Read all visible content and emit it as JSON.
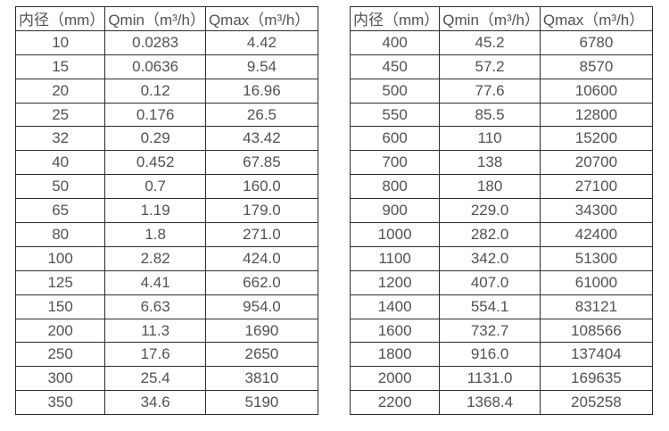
{
  "page": {
    "background": "#ffffff"
  },
  "style": {
    "border_color": "#2d2d2d",
    "text_color": "#515151"
  },
  "tables": [
    {
      "headers": [
        "内径（mm）",
        "Qmin（m³/h）",
        "Qmax（m³/h）"
      ],
      "rows": [
        [
          "10",
          "0.0283",
          "4.42"
        ],
        [
          "15",
          "0.0636",
          "9.54"
        ],
        [
          "20",
          "0.12",
          "16.96"
        ],
        [
          "25",
          "0.176",
          "26.5"
        ],
        [
          "32",
          "0.29",
          "43.42"
        ],
        [
          "40",
          "0.452",
          "67.85"
        ],
        [
          "50",
          "0.7",
          "160.0"
        ],
        [
          "65",
          "1.19",
          "179.0"
        ],
        [
          "80",
          "1.8",
          "271.0"
        ],
        [
          "100",
          "2.82",
          "424.0"
        ],
        [
          "125",
          "4.41",
          "662.0"
        ],
        [
          "150",
          "6.63",
          "954.0"
        ],
        [
          "200",
          "11.3",
          "1690"
        ],
        [
          "250",
          "17.6",
          "2650"
        ],
        [
          "300",
          "25.4",
          "3810"
        ],
        [
          "350",
          "34.6",
          "5190"
        ]
      ]
    },
    {
      "headers": [
        "内径（mm）",
        "Qmin（m³/h）",
        "Qmax（m³/h）"
      ],
      "rows": [
        [
          "400",
          "45.2",
          "6780"
        ],
        [
          "450",
          "57.2",
          "8570"
        ],
        [
          "500",
          "77.6",
          "10600"
        ],
        [
          "550",
          "85.5",
          "12800"
        ],
        [
          "600",
          "110",
          "15200"
        ],
        [
          "700",
          "138",
          "20700"
        ],
        [
          "800",
          "180",
          "27100"
        ],
        [
          "900",
          "229.0",
          "34300"
        ],
        [
          "1000",
          "282.0",
          "42400"
        ],
        [
          "1100",
          "342.0",
          "51300"
        ],
        [
          "1200",
          "407.0",
          "61000"
        ],
        [
          "1400",
          "554.1",
          "83121"
        ],
        [
          "1600",
          "732.7",
          "108566"
        ],
        [
          "1800",
          "916.0",
          "137404"
        ],
        [
          "2000",
          "1131.0",
          "169635"
        ],
        [
          "2200",
          "1368.4",
          "205258"
        ]
      ]
    }
  ]
}
